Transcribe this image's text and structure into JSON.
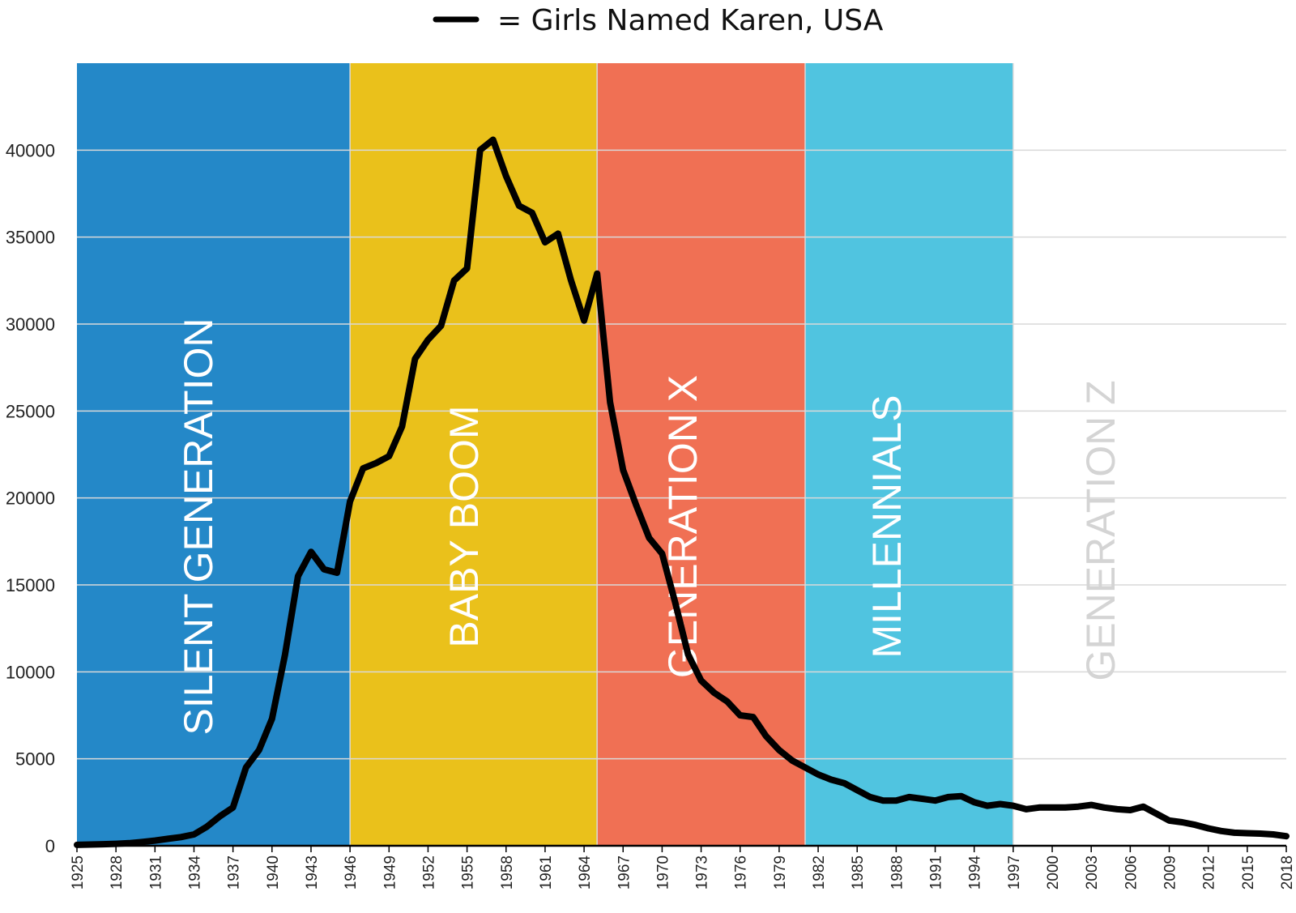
{
  "legend": {
    "label": "= Girls Named Karen, USA"
  },
  "colors": {
    "line": "#000000",
    "grid": "#d9d9d9",
    "axis": "#000000",
    "band_text_light": "#ffffff",
    "band_text_gray": "#d9d9d9"
  },
  "chart_data": {
    "type": "line",
    "title": "",
    "xlabel": "",
    "ylabel": "",
    "xlim": [
      1925,
      2018
    ],
    "ylim": [
      0,
      45000
    ],
    "yticks": [
      0,
      5000,
      10000,
      15000,
      20000,
      25000,
      30000,
      35000,
      40000
    ],
    "xticks": [
      1925,
      1928,
      1931,
      1934,
      1937,
      1940,
      1943,
      1946,
      1949,
      1952,
      1955,
      1958,
      1961,
      1964,
      1967,
      1970,
      1973,
      1976,
      1979,
      1982,
      1985,
      1988,
      1991,
      1994,
      1997,
      2000,
      2003,
      2006,
      2009,
      2012,
      2015,
      2018
    ],
    "grid": true,
    "series": [
      {
        "name": "Girls Named Karen, USA",
        "x": [
          1925,
          1926,
          1927,
          1928,
          1929,
          1930,
          1931,
          1932,
          1933,
          1934,
          1935,
          1936,
          1937,
          1938,
          1939,
          1940,
          1941,
          1942,
          1943,
          1944,
          1945,
          1946,
          1947,
          1948,
          1949,
          1950,
          1951,
          1952,
          1953,
          1954,
          1955,
          1956,
          1957,
          1958,
          1959,
          1960,
          1961,
          1962,
          1963,
          1964,
          1965,
          1966,
          1967,
          1968,
          1969,
          1970,
          1971,
          1972,
          1973,
          1974,
          1975,
          1976,
          1977,
          1978,
          1979,
          1980,
          1981,
          1982,
          1983,
          1984,
          1985,
          1986,
          1987,
          1988,
          1989,
          1990,
          1991,
          1992,
          1993,
          1994,
          1995,
          1996,
          1997,
          1998,
          1999,
          2000,
          2001,
          2002,
          2003,
          2004,
          2005,
          2006,
          2007,
          2008,
          2009,
          2010,
          2011,
          2012,
          2013,
          2014,
          2015,
          2016,
          2017,
          2018
        ],
        "values": [
          50,
          70,
          90,
          110,
          150,
          220,
          300,
          400,
          500,
          650,
          1100,
          1700,
          2200,
          4500,
          5500,
          7300,
          11000,
          15500,
          16900,
          15900,
          15700,
          19800,
          21700,
          22000,
          22400,
          24100,
          28000,
          29100,
          29900,
          32500,
          33200,
          40000,
          40600,
          38500,
          36800,
          36400,
          34700,
          35200,
          32500,
          30200,
          32900,
          25500,
          21600,
          19600,
          17700,
          16800,
          14000,
          11000,
          9500,
          8800,
          8300,
          7500,
          7400,
          6300,
          5500,
          4900,
          4500,
          4100,
          3800,
          3600,
          3200,
          2800,
          2600,
          2600,
          2800,
          2700,
          2600,
          2800,
          2850,
          2500,
          2300,
          2400,
          2300,
          2100,
          2200,
          2200,
          2200,
          2250,
          2350,
          2200,
          2100,
          2050,
          2250,
          1850,
          1450,
          1350,
          1200,
          1000,
          850,
          750,
          720,
          700,
          650,
          550
        ]
      }
    ],
    "bands": [
      {
        "label": "SILENT GENERATION",
        "start": 1925,
        "end": 1946,
        "color": "#2488c8",
        "text_color": "#ffffff"
      },
      {
        "label": "BABY BOOM",
        "start": 1946,
        "end": 1965,
        "color": "#eac11b",
        "text_color": "#ffffff"
      },
      {
        "label": "GENERATION X",
        "start": 1965,
        "end": 1981,
        "color": "#f07054",
        "text_color": "#ffffff"
      },
      {
        "label": "MILLENNIALS",
        "start": 1981,
        "end": 1997,
        "color": "#50c4e0",
        "text_color": "#ffffff"
      },
      {
        "label": "GENERATION Z",
        "start": 1997,
        "end": 2018,
        "color": "#ffffff",
        "text_color": "#d4d4d4"
      }
    ]
  }
}
